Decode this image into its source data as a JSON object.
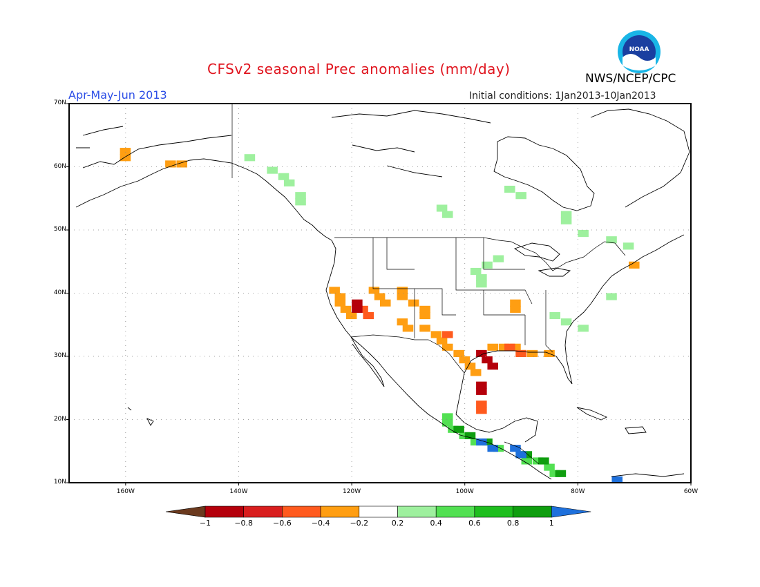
{
  "header": {
    "title": "CFSv2 seasonal Prec anomalies (mm/day)",
    "season": "Apr-May-Jun 2013",
    "initial_conditions": "Initial conditions: 1Jan2013-10Jan2013",
    "org": "NWS/NCEP/CPC",
    "logo_text": "NOAA"
  },
  "axes": {
    "lat_labels": [
      "70N",
      "60N",
      "50N",
      "40N",
      "30N",
      "20N",
      "10N"
    ],
    "lon_labels": [
      "160W",
      "140W",
      "120W",
      "100W",
      "80W",
      "60W"
    ]
  },
  "colorbar": {
    "labels": [
      "−1",
      "−0.8",
      "−0.6",
      "−0.4",
      "−0.2",
      "0.2",
      "0.4",
      "0.6",
      "0.8",
      "1"
    ],
    "colors": [
      "#6b3a1e",
      "#b5000b",
      "#d91e1e",
      "#ff5a1e",
      "#ff9e12",
      "#ffffff",
      "#9ef09e",
      "#52e052",
      "#1ebe1e",
      "#0f9e0f",
      "#1e70dc"
    ]
  },
  "map_data": {
    "lat_range": [
      10,
      70
    ],
    "lon_range": [
      -170,
      -60
    ],
    "anomaly_regions": [
      {
        "class": "-0.4",
        "color": "#ff9e12",
        "cells": [
          [
            61,
            -161
          ],
          [
            62,
            -161
          ],
          [
            60,
            -153
          ],
          [
            60,
            -151
          ]
        ]
      },
      {
        "class": "0.2",
        "color": "#9ef09e",
        "cells": [
          [
            61,
            -139
          ],
          [
            59,
            -135
          ],
          [
            58,
            -133
          ],
          [
            57,
            -132
          ],
          [
            55,
            -130
          ],
          [
            54,
            -130
          ],
          [
            53,
            -105
          ],
          [
            52,
            -104
          ],
          [
            56,
            -93
          ],
          [
            55,
            -91
          ],
          [
            51,
            -83
          ],
          [
            52,
            -83
          ],
          [
            49,
            -80
          ],
          [
            48,
            -75
          ],
          [
            47,
            -72
          ],
          [
            39,
            -75
          ],
          [
            45,
            -95
          ],
          [
            44,
            -97
          ],
          [
            43,
            -99
          ],
          [
            42,
            -98
          ],
          [
            41,
            -98
          ],
          [
            36,
            -85
          ],
          [
            35,
            -83
          ],
          [
            34,
            -80
          ]
        ]
      },
      {
        "class": "-0.4",
        "color": "#ff9e12",
        "cells": [
          [
            40,
            -124
          ],
          [
            39,
            -123
          ],
          [
            38,
            -123
          ],
          [
            37,
            -122
          ],
          [
            36,
            -121
          ],
          [
            40,
            -117
          ],
          [
            39,
            -116
          ],
          [
            38,
            -115
          ],
          [
            40,
            -112
          ],
          [
            39,
            -112
          ],
          [
            38,
            -110
          ],
          [
            37,
            -108
          ],
          [
            36,
            -108
          ],
          [
            35,
            -112
          ],
          [
            34,
            -111
          ],
          [
            34,
            -108
          ],
          [
            33,
            -106
          ],
          [
            32,
            -105
          ],
          [
            31,
            -104
          ],
          [
            30,
            -102
          ],
          [
            29,
            -101
          ],
          [
            28,
            -100
          ],
          [
            27,
            -99
          ],
          [
            31,
            -96
          ],
          [
            31,
            -94
          ],
          [
            31,
            -92
          ],
          [
            30,
            -91
          ],
          [
            30,
            -89
          ],
          [
            30,
            -86
          ],
          [
            37,
            -92
          ],
          [
            38,
            -92
          ],
          [
            44,
            -71
          ]
        ]
      },
      {
        "class": "-0.6",
        "color": "#ff5a1e",
        "cells": [
          [
            37,
            -119
          ],
          [
            36,
            -118
          ],
          [
            33,
            -104
          ],
          [
            31,
            -93
          ],
          [
            30,
            -91
          ],
          [
            22,
            -98
          ],
          [
            21,
            -98
          ]
        ]
      },
      {
        "class": "-0.8",
        "color": "#b5000b",
        "cells": [
          [
            38,
            -120
          ],
          [
            37,
            -120
          ],
          [
            30,
            -98
          ],
          [
            29,
            -97
          ],
          [
            28,
            -96
          ],
          [
            25,
            -98
          ],
          [
            24,
            -98
          ]
        ]
      },
      {
        "class": "0.4",
        "color": "#52e052",
        "cells": [
          [
            20,
            -104
          ],
          [
            19,
            -104
          ],
          [
            18,
            -103
          ],
          [
            17,
            -101
          ],
          [
            16,
            -99
          ],
          [
            15,
            -95
          ],
          [
            14,
            -91
          ],
          [
            13,
            -90
          ],
          [
            13,
            -88
          ],
          [
            12,
            -86
          ],
          [
            11,
            -85
          ]
        ]
      },
      {
        "class": "0.8",
        "color": "#0f9e0f",
        "cells": [
          [
            18,
            -102
          ],
          [
            17,
            -100
          ],
          [
            16,
            -97
          ],
          [
            14,
            -90
          ],
          [
            13,
            -87
          ],
          [
            11,
            -84
          ]
        ]
      },
      {
        "class": "1",
        "color": "#1e70dc",
        "cells": [
          [
            16,
            -98
          ],
          [
            15,
            -96
          ],
          [
            15,
            -92
          ],
          [
            14,
            -91
          ],
          [
            10,
            -74
          ]
        ]
      }
    ]
  }
}
